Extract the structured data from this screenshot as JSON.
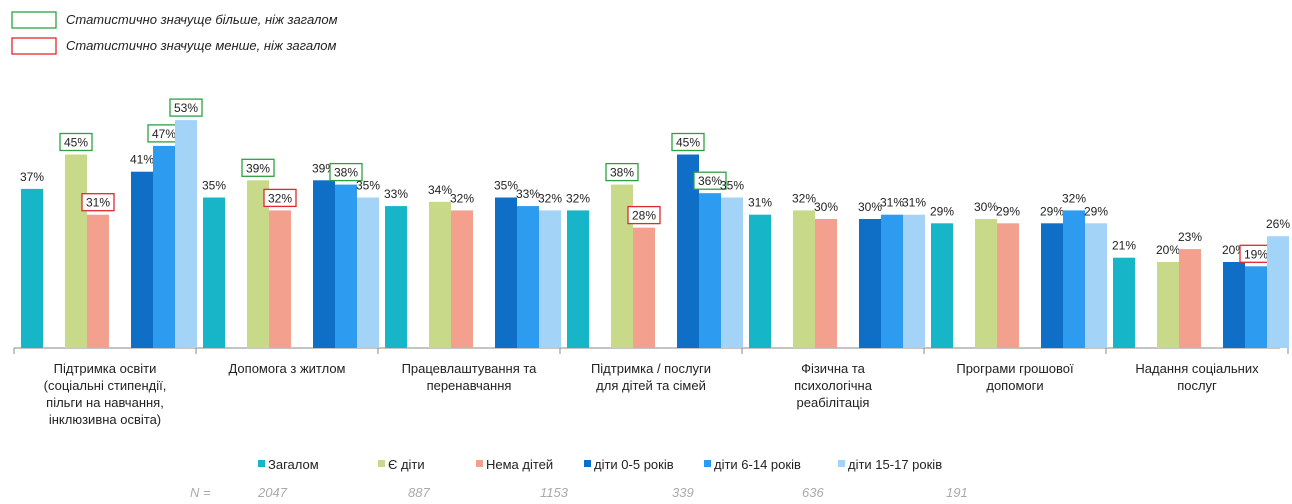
{
  "chart_data": {
    "type": "bar",
    "significance_legend": [
      {
        "label": "Статистично значуще більше, ніж загалом",
        "color": "#2ea043"
      },
      {
        "label": "Статистично значуще менше, ніж загалом",
        "color": "#e0282e"
      }
    ],
    "categories": [
      "Підтримка освіти\n(соціальні стипендії,\nпільги на навчання,\nінклюзивна освіта)",
      "Допомога з житлом",
      "Працевлаштування та\nперенавчання",
      "Підтримка / послуги\nдля дітей та сімей",
      "Фізична та\nпсихологічна\nреабілітація",
      "Програми грошової\nдопомоги",
      "Надання соціальних\nпослуг"
    ],
    "series": [
      {
        "name": "Загалом",
        "color": "#17b5c8",
        "values": [
          37,
          35,
          33,
          32,
          31,
          29,
          21
        ],
        "value_labels": [
          "37%",
          "35%",
          "33%",
          "32%",
          "31%",
          "29%",
          "21%"
        ],
        "box_colors": [
          null,
          null,
          null,
          null,
          null,
          null,
          null
        ]
      },
      {
        "name": "Є діти",
        "color": "#c9d98a",
        "values": [
          45,
          39,
          34,
          38,
          32,
          30,
          20
        ],
        "value_labels": [
          "45%",
          "39%",
          "34%",
          "38%",
          "32%",
          "30%",
          "20%"
        ],
        "box_colors": [
          "#2ea043",
          "#2ea043",
          null,
          "#2ea043",
          null,
          null,
          null
        ]
      },
      {
        "name": "Нема дітей",
        "color": "#f3a18e",
        "values": [
          31,
          32,
          32,
          28,
          30,
          29,
          23
        ],
        "value_labels": [
          "31%",
          "32%",
          "32%",
          "28%",
          "30%",
          "29%",
          "23%"
        ],
        "box_colors": [
          "#e0282e",
          "#e0282e",
          null,
          "#e0282e",
          null,
          null,
          null
        ]
      },
      {
        "name": "діти 0-5 років",
        "color": "#0f6fc6",
        "values": [
          41,
          39,
          35,
          45,
          30,
          29,
          20
        ],
        "value_labels": [
          "41%",
          "39%",
          "35%",
          "45%",
          "30%",
          "29%",
          "20%"
        ],
        "box_colors": [
          null,
          null,
          null,
          "#2ea043",
          null,
          null,
          null
        ]
      },
      {
        "name": "діти 6-14 років",
        "color": "#2c9bf0",
        "values": [
          47,
          38,
          33,
          36,
          31,
          32,
          19
        ],
        "value_labels": [
          "47%",
          "38%",
          "33%",
          "36%",
          "31%",
          "32%",
          "19%"
        ],
        "box_colors": [
          "#2ea043",
          "#2ea043",
          null,
          "#2ea043",
          null,
          null,
          "#e0282e"
        ]
      },
      {
        "name": "діти 15-17 років",
        "color": "#a3d3f7",
        "values": [
          53,
          35,
          32,
          35,
          31,
          29,
          26
        ],
        "value_labels": [
          "53%",
          "35%",
          "32%",
          "35%",
          "31%",
          "29%",
          "26%"
        ],
        "box_colors": [
          "#2ea043",
          null,
          null,
          null,
          null,
          null,
          null
        ]
      }
    ],
    "n_label": "N =",
    "n_values": [
      2047,
      887,
      1153,
      339,
      636,
      191
    ]
  }
}
